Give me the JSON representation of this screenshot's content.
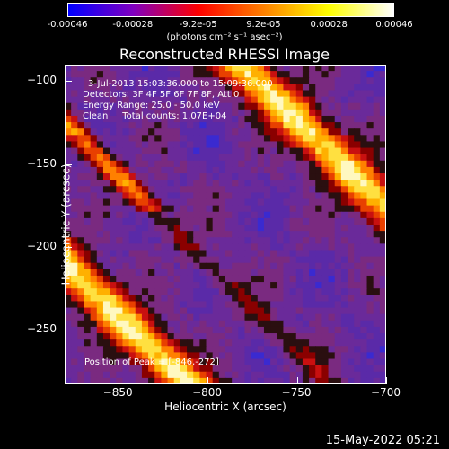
{
  "colorbar": {
    "tick_labels": [
      "-0.00046",
      "-0.00028",
      "-9.2e-05",
      "9.2e-05",
      "0.00028",
      "0.00046"
    ],
    "units_label": "(photons cm⁻² s⁻¹ asec⁻²)",
    "range": [
      -0.00046,
      0.00046
    ],
    "colors": [
      "#0000ff",
      "#8000c0",
      "#ff0000",
      "#ff8000",
      "#ffff00",
      "#ffffff"
    ]
  },
  "chart_data": {
    "type": "heatmap",
    "title": "Reconstructed RHESSI Image",
    "xlabel": "Heliocentric X (arcsec)",
    "ylabel": "Heliocentric Y (arcsec)",
    "xlim": [
      -880,
      -700
    ],
    "ylim": [
      -283,
      -90
    ],
    "x_ticks": [
      -850,
      -800,
      -750,
      -700
    ],
    "y_ticks": [
      -100,
      -150,
      -200,
      -250
    ],
    "annotations": [
      "3-Jul-2013 15:03:36.000 to 15:09:36.000",
      "Detectors: 3F 4F 5F 6F 7F 8F, Att 0",
      "Energy Range: 25.0 - 50.0 keV",
      "Clean     Total counts: 1.07E+04",
      "Position of Peak = [-846,-272]"
    ],
    "peak": [
      -846,
      -272
    ]
  },
  "footer": {
    "date": "15-May-2022 05:21"
  }
}
